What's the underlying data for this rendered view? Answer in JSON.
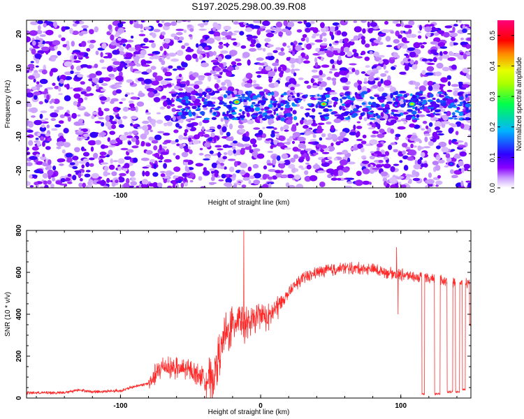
{
  "figure_title": "S197.2025.298.00.39.R08",
  "chart_data": [
    {
      "type": "heatmap",
      "title": "S197.2025.298.00.39.R08",
      "xlabel": "Height of straight line (km)",
      "ylabel": "Frequency (Hz)",
      "xlim": [
        -167,
        150
      ],
      "ylim": [
        -25,
        24
      ],
      "x_ticks": [
        "-100",
        "0",
        "100"
      ],
      "y_ticks": [
        "-20",
        "-10",
        "0",
        "10",
        "20"
      ],
      "colorbar": {
        "label": "Normalized spectral amplitude",
        "range": [
          0.0,
          0.55
        ],
        "ticks": [
          "0.0",
          "0.1",
          "0.2",
          "0.3",
          "0.4",
          "0.5"
        ],
        "colormap": "white-purple-blue-cyan-green-yellow-red-magenta"
      },
      "features": [
        {
          "description": "diffuse purple background noise",
          "amplitude": 0.05
        },
        {
          "x": -17,
          "y": 0.1,
          "amplitude": 0.45
        },
        {
          "x": 45,
          "y": -0.5,
          "amplitude": 0.45
        },
        {
          "x": 108,
          "y": -0.5,
          "amplitude": 0.4
        },
        {
          "x": -37,
          "y": 3.5,
          "amplitude": 0.15
        },
        {
          "x": 136,
          "y": -18,
          "amplitude": 0.15
        }
      ],
      "band": {
        "y_center": -1,
        "y_halfwidth": 4,
        "x_start": -60,
        "x_end": 150
      }
    },
    {
      "type": "line",
      "xlabel": "Height of straight line (km)",
      "ylabel": "SNR (10 * v/v)",
      "xlim": [
        -167,
        150
      ],
      "ylim": [
        0,
        800
      ],
      "x_ticks": [
        "-100",
        "0",
        "100"
      ],
      "y_ticks": [
        "0",
        "200",
        "400",
        "600",
        "800"
      ],
      "color": "#ff2a2a",
      "trend_points": {
        "x": [
          -167,
          -140,
          -130,
          -120,
          -100,
          -90,
          -80,
          -75,
          -70,
          -60,
          -50,
          -40,
          -35,
          -30,
          -25,
          -20,
          -15,
          -10,
          -5,
          0,
          5,
          10,
          15,
          20,
          25,
          30,
          40,
          50,
          60,
          70,
          80,
          90,
          100,
          110,
          115,
          120,
          130,
          140,
          150
        ],
        "y": [
          25,
          25,
          40,
          30,
          35,
          55,
          70,
          110,
          150,
          140,
          130,
          100,
          80,
          200,
          300,
          350,
          400,
          350,
          370,
          400,
          380,
          420,
          460,
          500,
          540,
          570,
          600,
          610,
          620,
          620,
          615,
          600,
          590,
          580,
          570,
          565,
          560,
          555,
          550
        ]
      },
      "dropouts": [
        {
          "x_start": 115,
          "x_end": 117,
          "y": 20
        },
        {
          "x_start": 124,
          "x_end": 128,
          "y": 20
        },
        {
          "x_start": 133,
          "x_end": 137,
          "y": 30
        },
        {
          "x_start": 139,
          "x_end": 142,
          "y": 30
        },
        {
          "x_start": 144,
          "x_end": 146,
          "y": 40
        },
        {
          "x_start": 149,
          "x_end": 150,
          "y": 350
        }
      ],
      "spikes": [
        {
          "x": -12,
          "y": 800
        },
        {
          "x": 97,
          "y": 720
        },
        {
          "x": 98,
          "y": 400
        }
      ]
    }
  ],
  "colors": {
    "series_line": "#ff2a2a",
    "axis": "#000000",
    "colormap_stops": [
      "#ffffff",
      "#8a00ff",
      "#2f00ff",
      "#00b4ff",
      "#00ff4c",
      "#e6ff00",
      "#ff8a00",
      "#ff0000",
      "#ff007a"
    ]
  }
}
